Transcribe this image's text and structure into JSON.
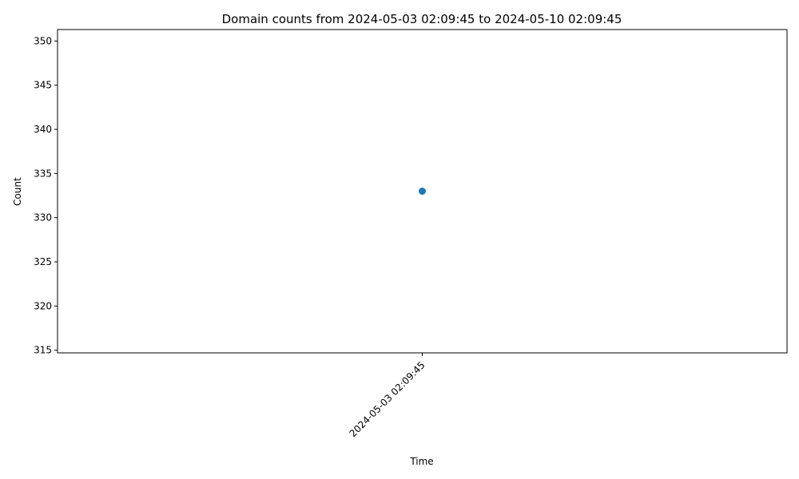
{
  "chart_data": {
    "type": "scatter",
    "title": "Domain counts from 2024-05-03 02:09:45 to 2024-05-10 02:09:45",
    "xlabel": "Time",
    "ylabel": "Count",
    "x": [
      "2024-05-03 02:09:45"
    ],
    "y": [
      333
    ],
    "x_tick_labels": [
      "2024-05-03 02:09:45"
    ],
    "y_ticks": [
      315,
      320,
      325,
      330,
      335,
      340,
      345,
      350
    ],
    "ylim": [
      314.7,
      351.3
    ],
    "grid": false,
    "legend": "none",
    "marker_color": "#1f77b4"
  }
}
